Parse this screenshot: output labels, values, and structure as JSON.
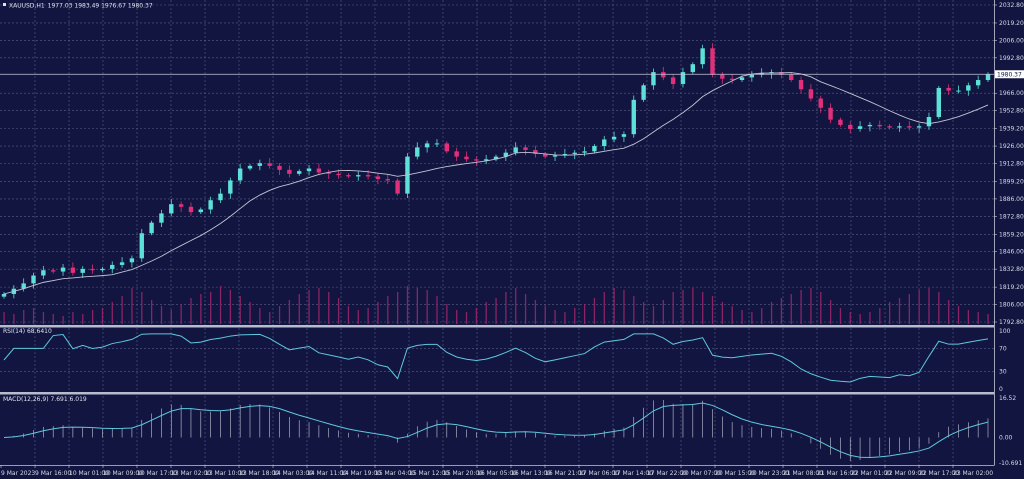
{
  "header": {
    "symbol": "XAUUSD,H1",
    "ohlc": "1977.03 1983.49 1976.67 1980.37"
  },
  "colors": {
    "background": "#111540",
    "bull": "#5ce0d8",
    "bear": "#e0307a",
    "moving_average": "#c4c4d4",
    "volume": "#8a2465",
    "indicator_line": "#5fc8dc",
    "grid": "#5a5f86"
  },
  "chart_data": {
    "type": "candlestick",
    "symbol": "XAUUSD",
    "timeframe": "H1",
    "price_axis": {
      "ylim": [
        1792.8,
        2032.8
      ],
      "ticks": [
        "2032.80",
        "2019.20",
        "2006.00",
        "1992.80",
        "1966.00",
        "1952.80",
        "1939.20",
        "1926.00",
        "1912.80",
        "1899.20",
        "1886.00",
        "1872.80",
        "1859.20",
        "1846.00",
        "1832.80",
        "1819.20",
        "1806.00",
        "1792.80"
      ],
      "current_price": "1980.37"
    },
    "time_axis": [
      "9 Mar 2023",
      "9 Mar 16:00",
      "10 Mar 01:00",
      "10 Mar 09:00",
      "10 Mar 17:00",
      "13 Mar 02:00",
      "13 Mar 10:00",
      "13 Mar 18:00",
      "14 Mar 03:00",
      "14 Mar 11:00",
      "14 Mar 19:00",
      "15 Mar 04:00",
      "15 Mar 12:00",
      "15 Mar 20:00",
      "16 Mar 05:00",
      "16 Mar 13:00",
      "16 Mar 21:00",
      "17 Mar 06:00",
      "17 Mar 14:00",
      "17 Mar 22:00",
      "20 Mar 07:00",
      "20 Mar 15:00",
      "20 Mar 23:00",
      "21 Mar 08:00",
      "21 Mar 16:00",
      "22 Mar 01:00",
      "22 Mar 09:00",
      "22 Mar 17:00",
      "23 Mar 02:00"
    ],
    "closes": [
      1814,
      1818,
      1822,
      1828,
      1832,
      1831,
      1834,
      1830,
      1833,
      1832,
      1833,
      1836,
      1838,
      1841,
      1860,
      1868,
      1875,
      1882,
      1880,
      1876,
      1878,
      1885,
      1890,
      1900,
      1909,
      1911,
      1913,
      1911,
      1908,
      1905,
      1907,
      1909,
      1906,
      1905,
      1904,
      1903,
      1904,
      1903,
      1901,
      1900,
      1890,
      1918,
      1925,
      1928,
      1928,
      1922,
      1918,
      1916,
      1915,
      1916,
      1918,
      1921,
      1925,
      1923,
      1920,
      1918,
      1919,
      1920,
      1921,
      1922,
      1926,
      1931,
      1933,
      1935,
      1961,
      1972,
      1982,
      1978,
      1973,
      1982,
      1988,
      2000,
      1980,
      1977,
      1976,
      1978,
      1980,
      1981,
      1982,
      1980,
      1976,
      1969,
      1962,
      1955,
      1946,
      1942,
      1939,
      1941,
      1942,
      1941,
      1940,
      1941,
      1940,
      1941,
      1948,
      1970,
      1968,
      1968,
      1972,
      1976,
      1980.37
    ],
    "volumes": [
      30,
      25,
      35,
      40,
      30,
      25,
      20,
      30,
      25,
      35,
      40,
      55,
      70,
      90,
      80,
      60,
      45,
      35,
      50,
      65,
      75,
      80,
      95,
      85,
      70,
      55,
      40,
      30,
      45,
      60,
      75,
      85,
      90,
      80,
      65,
      45,
      35,
      40,
      55,
      70,
      80,
      95,
      90,
      85,
      70,
      50,
      35,
      30,
      40,
      55,
      65,
      80,
      90,
      75,
      60,
      45,
      35,
      30,
      40,
      50,
      65,
      80,
      90,
      85,
      70,
      55,
      45,
      60,
      80,
      85,
      90,
      80,
      70,
      55,
      45,
      35,
      30,
      40,
      55,
      65,
      75,
      85,
      90,
      80,
      60,
      40,
      30,
      25,
      30,
      40,
      55,
      65,
      75,
      85,
      90,
      80,
      60,
      45,
      35,
      30,
      25
    ],
    "rsi": {
      "label": "RSI(14) 68.6410",
      "ticks": [
        "100",
        "70",
        "30",
        "0"
      ],
      "ylim": [
        0,
        100
      ]
    },
    "macd": {
      "label": "MACD(12,26,9) 7.691 6.019",
      "ticks": [
        "16.52",
        "0.00",
        "-10.691"
      ],
      "ylim": [
        -10.691,
        16.52
      ]
    }
  }
}
